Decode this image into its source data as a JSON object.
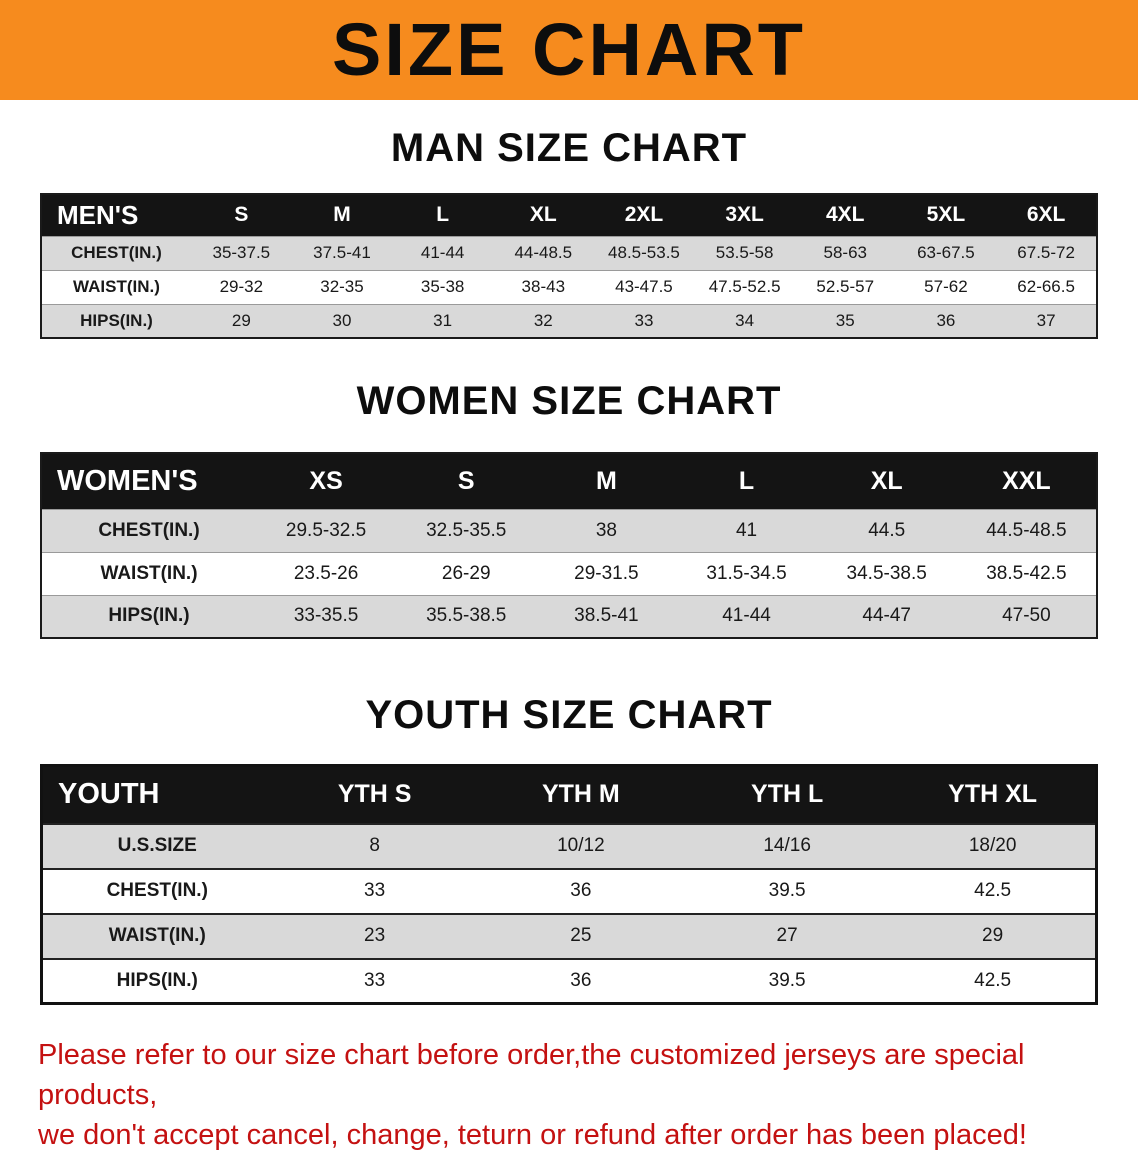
{
  "banner": {
    "title": "SIZE CHART"
  },
  "colors": {
    "banner_bg": "#f68b1e",
    "banner_text": "#0d0d0d",
    "table_header_bg": "#141414",
    "table_header_text": "#ffffff",
    "row_stripe": "#d9d9d9",
    "row_white": "#ffffff",
    "notice_text": "#c41111"
  },
  "sections": [
    {
      "id": "men",
      "heading": "MAN SIZE CHART",
      "table": {
        "header": [
          "MEN'S",
          "S",
          "M",
          "L",
          "XL",
          "2XL",
          "3XL",
          "4XL",
          "5XL",
          "6XL"
        ],
        "rows": [
          [
            "CHEST(IN.)",
            "35-37.5",
            "37.5-41",
            "41-44",
            "44-48.5",
            "48.5-53.5",
            "53.5-58",
            "58-63",
            "63-67.5",
            "67.5-72"
          ],
          [
            "WAIST(IN.)",
            "29-32",
            "32-35",
            "35-38",
            "38-43",
            "43-47.5",
            "47.5-52.5",
            "52.5-57",
            "57-62",
            "62-66.5"
          ],
          [
            "HIPS(IN.)",
            "29",
            "30",
            "31",
            "32",
            "33",
            "34",
            "35",
            "36",
            "37"
          ]
        ]
      }
    },
    {
      "id": "women",
      "heading": "WOMEN SIZE CHART",
      "table": {
        "header": [
          "WOMEN'S",
          "XS",
          "S",
          "M",
          "L",
          "XL",
          "XXL"
        ],
        "rows": [
          [
            "CHEST(IN.)",
            "29.5-32.5",
            "32.5-35.5",
            "38",
            "41",
            "44.5",
            "44.5-48.5"
          ],
          [
            "WAIST(IN.)",
            "23.5-26",
            "26-29",
            "29-31.5",
            "31.5-34.5",
            "34.5-38.5",
            "38.5-42.5"
          ],
          [
            "HIPS(IN.)",
            "33-35.5",
            "35.5-38.5",
            "38.5-41",
            "41-44",
            "44-47",
            "47-50"
          ]
        ]
      }
    },
    {
      "id": "youth",
      "heading": "YOUTH SIZE CHART",
      "table": {
        "header": [
          "YOUTH",
          "YTH S",
          "YTH M",
          "YTH L",
          "YTH XL"
        ],
        "rows": [
          [
            "U.S.SIZE",
            "8",
            "10/12",
            "14/16",
            "18/20"
          ],
          [
            "CHEST(IN.)",
            "33",
            "36",
            "39.5",
            "42.5"
          ],
          [
            "WAIST(IN.)",
            "23",
            "25",
            "27",
            "29"
          ],
          [
            "HIPS(IN.)",
            "33",
            "36",
            "39.5",
            "42.5"
          ]
        ]
      }
    }
  ],
  "footer": {
    "line1": "Please refer to our size chart before order,the customized jerseys are special products,",
    "line2": "we don't accept cancel, change, teturn or refund after order has been placed!"
  }
}
